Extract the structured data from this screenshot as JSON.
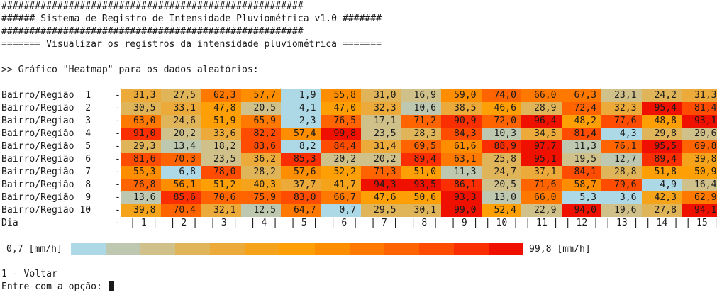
{
  "header": {
    "line1": "######################################################",
    "line2": "###### Sistema de Registro de Intensidade Pluviométrica v1.0 #######",
    "line3": "######################################################",
    "line4": "======= Visualizar os registros da intensidade pluviométrica ======="
  },
  "prompt_line": ">> Gráfico \"Heatmap\" para os dados aleatórios:",
  "row_labels": [
    "Bairro/Região  1",
    "Bairro/Região  2",
    "Bairro/Regiao  3",
    "Bairro/Região  4",
    "Bairro/Região  5",
    "Bairro/Região  6",
    "Bairro/Região  7",
    "Bairro/Região  8",
    "Bairro/Região  9",
    "Bairro/Região 10"
  ],
  "day_label": "Dia",
  "separator": "-",
  "chart_data": {
    "type": "heatmap",
    "rows": [
      "Bairro/Região  1",
      "Bairro/Região  2",
      "Bairro/Regiao  3",
      "Bairro/Região  4",
      "Bairro/Região  5",
      "Bairro/Região  6",
      "Bairro/Região  7",
      "Bairro/Região  8",
      "Bairro/Região  9",
      "Bairro/Região 10"
    ],
    "columns": [
      1,
      2,
      3,
      4,
      5,
      6,
      7,
      8,
      9,
      10,
      11,
      12,
      13,
      14,
      15
    ],
    "values": [
      [
        31.3,
        27.5,
        62.3,
        57.7,
        1.9,
        55.8,
        31.0,
        16.9,
        59.0,
        74.0,
        66.0,
        67.3,
        23.1,
        24.2,
        31.3
      ],
      [
        30.5,
        33.1,
        47.8,
        20.5,
        4.1,
        47.0,
        32.3,
        10.6,
        38.5,
        46.6,
        28.9,
        72.4,
        32.3,
        95.4,
        81.4
      ],
      [
        63.0,
        24.6,
        51.9,
        65.9,
        2.3,
        76.5,
        17.1,
        71.2,
        90.9,
        72.0,
        96.4,
        48.2,
        77.6,
        48.8,
        93.1
      ],
      [
        91.0,
        20.2,
        33.6,
        82.2,
        57.4,
        99.8,
        23.5,
        28.3,
        84.3,
        10.3,
        34.5,
        81.4,
        4.3,
        29.8,
        20.6
      ],
      [
        29.3,
        13.4,
        18.2,
        83.6,
        8.2,
        84.4,
        31.4,
        69.5,
        61.6,
        88.9,
        97.7,
        11.3,
        76.1,
        95.5,
        69.8
      ],
      [
        81.6,
        70.3,
        23.5,
        36.2,
        85.3,
        20.2,
        20.2,
        89.4,
        63.1,
        25.8,
        95.1,
        19.5,
        12.7,
        89.4,
        39.8
      ],
      [
        55.3,
        6.8,
        78.0,
        28.2,
        57.6,
        52.2,
        71.3,
        51.0,
        11.3,
        24.7,
        37.1,
        84.1,
        28.8,
        51.8,
        50.9
      ],
      [
        76.8,
        56.1,
        51.2,
        40.3,
        37.7,
        41.7,
        94.3,
        93.5,
        86.1,
        20.5,
        71.6,
        58.7,
        79.6,
        4.9,
        16.4
      ],
      [
        13.6,
        85.6,
        70.6,
        75.9,
        83.0,
        66.7,
        47.6,
        50.6,
        93.3,
        13.0,
        66.0,
        5.3,
        3.6,
        42.3,
        62.9
      ],
      [
        39.8,
        70.4,
        32.1,
        12.5,
        64.7,
        0.7,
        29.5,
        30.1,
        99.0,
        52.4,
        22.9,
        94.0,
        19.6,
        27.8,
        94.1
      ]
    ],
    "min": 0.7,
    "max": 99.8,
    "colormap": [
      "#add8e6",
      "#bec8b0",
      "#d0c08a",
      "#e0b55a",
      "#ecaa3a",
      "#f6a31c",
      "#fe9f06",
      "#ff8d00",
      "#ff7800",
      "#ff6400",
      "#ff4c00",
      "#fa2e00",
      "#f01000"
    ]
  },
  "legend": {
    "min_label": "0,7 [mm/h]",
    "max_label": "99,8 [mm/h]"
  },
  "menu": {
    "option1": "1 - Voltar",
    "input_prompt": "Entre com a opção: "
  }
}
